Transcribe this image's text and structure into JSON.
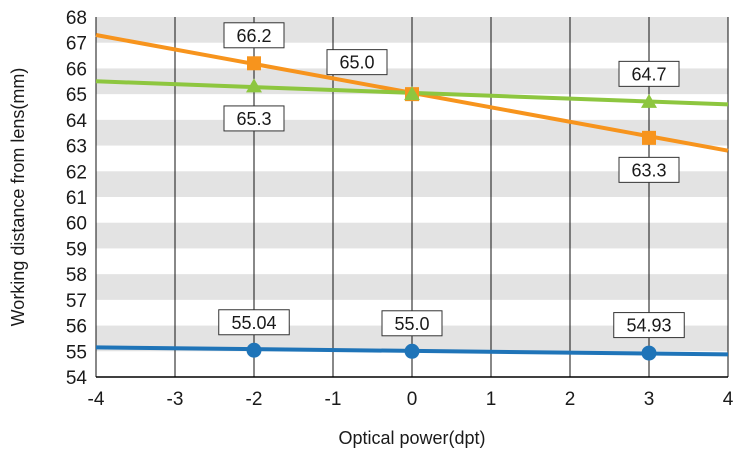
{
  "chart_data": {
    "type": "line",
    "xlabel": "Optical power(dpt)",
    "ylabel": "Working distance from lens(mm)",
    "xlim": [
      -4,
      4
    ],
    "ylim": [
      54,
      68
    ],
    "x_ticks": [
      "-4",
      "-3",
      "-2",
      "-1",
      "0",
      "1",
      "2",
      "3",
      "4"
    ],
    "y_ticks": [
      "54",
      "55",
      "56",
      "57",
      "58",
      "59",
      "60",
      "61",
      "62",
      "63",
      "64",
      "65",
      "66",
      "67",
      "68"
    ],
    "grid": "alternating horizontal bands and vertical lines",
    "series": [
      {
        "color": "#f7941d",
        "marker": "square",
        "line": [
          [
            -4,
            67.3
          ],
          [
            4,
            62.8
          ]
        ],
        "points": [
          [
            -2,
            66.2
          ],
          [
            0,
            65.0
          ],
          [
            3,
            63.3
          ]
        ],
        "labels": [
          "66.2",
          "65.0",
          "63.3"
        ]
      },
      {
        "color": "#8dc63f",
        "marker": "triangle",
        "line": [
          [
            -4,
            65.5
          ],
          [
            4,
            64.6
          ]
        ],
        "points": [
          [
            -2,
            65.3
          ],
          [
            0,
            65.0
          ],
          [
            3,
            64.7
          ]
        ],
        "labels": [
          "65.3",
          "",
          "64.7"
        ]
      },
      {
        "color": "#1f74b8",
        "marker": "circle",
        "line": [
          [
            -4,
            55.15
          ],
          [
            4,
            54.88
          ]
        ],
        "points": [
          [
            -2,
            55.04
          ],
          [
            0,
            55.0
          ],
          [
            3,
            54.93
          ]
        ],
        "labels": [
          "55.04",
          "55.0",
          "54.93"
        ]
      }
    ],
    "label_placement": [
      {
        "series": 0,
        "point": 0,
        "at": "above"
      },
      {
        "series": 0,
        "point": 1,
        "at": "above-left"
      },
      {
        "series": 0,
        "point": 2,
        "at": "below"
      },
      {
        "series": 1,
        "point": 0,
        "at": "below"
      },
      {
        "series": 1,
        "point": 2,
        "at": "above"
      },
      {
        "series": 2,
        "point": 0,
        "at": "above"
      },
      {
        "series": 2,
        "point": 1,
        "at": "above"
      },
      {
        "series": 2,
        "point": 2,
        "at": "above"
      }
    ]
  }
}
